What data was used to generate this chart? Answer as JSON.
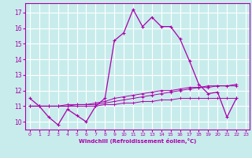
{
  "xlabel": "Windchill (Refroidissement éolien,°C)",
  "background_color": "#c8ecec",
  "grid_color": "#ffffff",
  "line_color": "#aa00aa",
  "xlim": [
    -0.5,
    23.4
  ],
  "ylim": [
    9.5,
    17.6
  ],
  "xticks": [
    0,
    1,
    2,
    3,
    4,
    5,
    6,
    7,
    8,
    9,
    10,
    11,
    12,
    13,
    14,
    15,
    16,
    17,
    18,
    19,
    20,
    21,
    22,
    23
  ],
  "yticks": [
    10,
    11,
    12,
    13,
    14,
    15,
    16,
    17
  ],
  "series1_x": [
    0,
    1,
    2,
    3,
    4,
    5,
    6,
    7,
    8,
    9,
    10,
    11,
    12,
    13,
    14,
    15,
    16,
    17,
    18,
    19,
    20,
    21,
    22
  ],
  "series1_y": [
    11.5,
    11.0,
    10.3,
    9.8,
    10.8,
    10.4,
    10.0,
    11.0,
    11.5,
    15.2,
    15.7,
    17.2,
    16.1,
    16.7,
    16.1,
    16.1,
    15.3,
    13.9,
    12.4,
    11.8,
    11.9,
    10.3,
    11.5
  ],
  "series2_x": [
    0,
    1,
    2,
    3,
    4,
    5,
    6,
    7,
    8,
    9,
    10,
    11,
    12,
    13,
    14,
    15,
    16,
    17,
    18,
    19,
    20,
    21,
    22
  ],
  "series2_y": [
    11.0,
    11.0,
    11.0,
    11.0,
    11.0,
    11.1,
    11.1,
    11.1,
    11.2,
    11.3,
    11.4,
    11.5,
    11.6,
    11.7,
    11.8,
    11.9,
    12.0,
    12.1,
    12.2,
    12.2,
    12.3,
    12.3,
    12.3
  ],
  "series3_x": [
    0,
    1,
    2,
    3,
    4,
    5,
    6,
    7,
    8,
    9,
    10,
    11,
    12,
    13,
    14,
    15,
    16,
    17,
    18,
    19,
    20,
    21,
    22
  ],
  "series3_y": [
    11.0,
    11.0,
    11.0,
    11.0,
    11.0,
    11.0,
    11.0,
    11.0,
    11.1,
    11.1,
    11.2,
    11.2,
    11.3,
    11.3,
    11.4,
    11.4,
    11.5,
    11.5,
    11.5,
    11.5,
    11.5,
    11.5,
    11.5
  ],
  "series4_x": [
    0,
    1,
    2,
    3,
    4,
    5,
    6,
    7,
    8,
    9,
    10,
    11,
    12,
    13,
    14,
    15,
    16,
    17,
    18,
    19,
    20,
    21,
    22
  ],
  "series4_y": [
    11.0,
    11.0,
    11.0,
    11.0,
    11.1,
    11.1,
    11.1,
    11.2,
    11.3,
    11.5,
    11.6,
    11.7,
    11.8,
    11.9,
    12.0,
    12.0,
    12.1,
    12.2,
    12.2,
    12.3,
    12.3,
    12.3,
    12.4
  ]
}
